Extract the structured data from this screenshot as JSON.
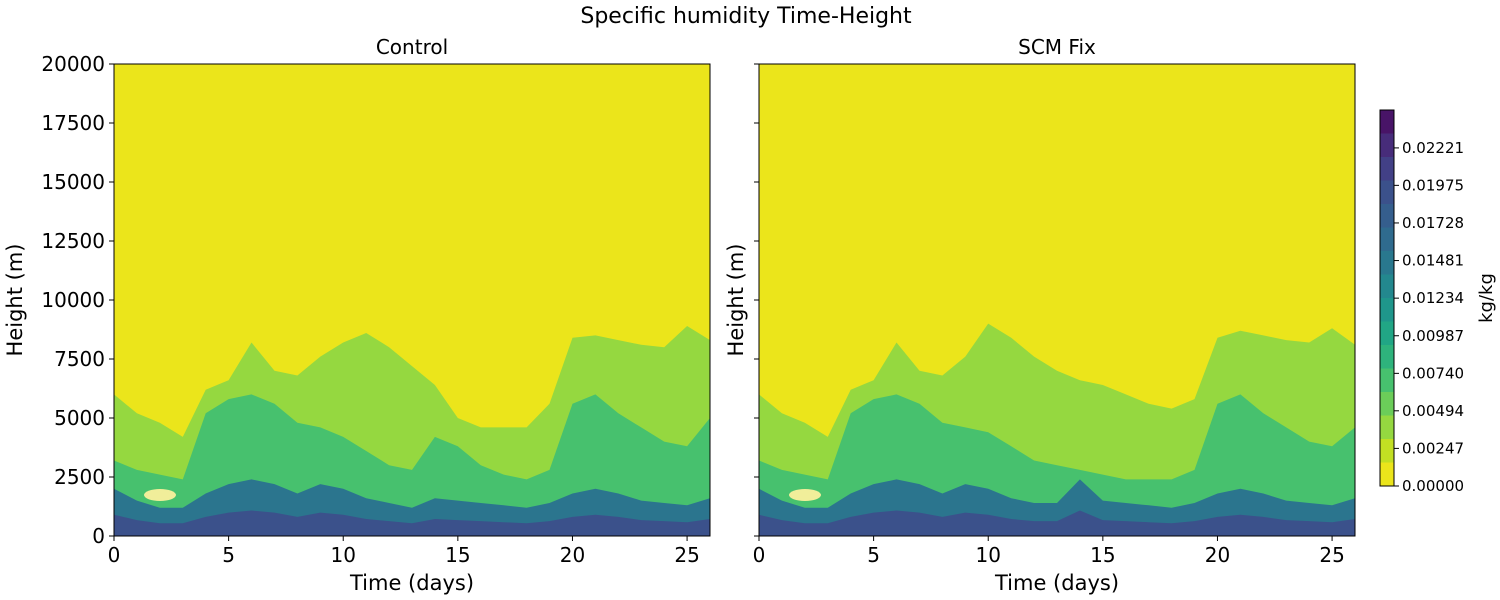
{
  "chart_data": {
    "type": "heatmap",
    "title": "Specific humidity Time-Height",
    "panels": [
      {
        "title": "Control",
        "xlabel": "Time (days)",
        "ylabel": "Height (m)",
        "xlim": [
          0,
          26
        ],
        "ylim": [
          0,
          20000
        ],
        "xticks": [
          "0",
          "5",
          "10",
          "15",
          "20",
          "25"
        ],
        "yticks": [
          "0",
          "2500",
          "5000",
          "7500",
          "10000",
          "12500",
          "15000",
          "17500",
          "20000"
        ],
        "profile": {
          "t": [
            0,
            1,
            2,
            3,
            4,
            5,
            6,
            7,
            8,
            9,
            10,
            11,
            12,
            13,
            14,
            15,
            16,
            17,
            18,
            19,
            20,
            21,
            22,
            23,
            24,
            25,
            26
          ],
          "moist_top": [
            6000,
            5200,
            4800,
            4200,
            6200,
            6600,
            8200,
            7000,
            6800,
            7600,
            8200,
            8600,
            8000,
            7200,
            6400,
            5000,
            4600,
            4600,
            4600,
            5600,
            8400,
            8500,
            8300,
            8100,
            8000,
            8900,
            8300
          ],
          "mid_top": [
            3200,
            2800,
            2600,
            2400,
            5200,
            5800,
            6000,
            5600,
            4800,
            4600,
            4200,
            3600,
            3000,
            2800,
            4200,
            3800,
            3000,
            2600,
            2400,
            2800,
            5600,
            6000,
            5200,
            4600,
            4000,
            3800,
            5000
          ],
          "moist_layer": [
            2000,
            1500,
            1200,
            1200,
            1800,
            2200,
            2400,
            2200,
            1800,
            2200,
            2000,
            1600,
            1400,
            1200,
            1600,
            1500,
            1400,
            1300,
            1200,
            1400,
            1800,
            2000,
            1800,
            1500,
            1400,
            1300,
            1600
          ]
        }
      },
      {
        "title": "SCM Fix",
        "xlabel": "Time (days)",
        "ylabel": "Height (m)",
        "xlim": [
          0,
          26
        ],
        "ylim": [
          0,
          20000
        ],
        "xticks": [
          "0",
          "5",
          "10",
          "15",
          "20",
          "25"
        ],
        "yticks": [
          "0",
          "2500",
          "5000",
          "7500",
          "10000",
          "12500",
          "15000",
          "17500",
          "20000"
        ],
        "profile": {
          "t": [
            0,
            1,
            2,
            3,
            4,
            5,
            6,
            7,
            8,
            9,
            10,
            11,
            12,
            13,
            14,
            15,
            16,
            17,
            18,
            19,
            20,
            21,
            22,
            23,
            24,
            25,
            26
          ],
          "moist_top": [
            6000,
            5200,
            4800,
            4200,
            6200,
            6600,
            8200,
            7000,
            6800,
            7600,
            9000,
            8400,
            7600,
            7000,
            6600,
            6400,
            6000,
            5600,
            5400,
            5800,
            8400,
            8700,
            8500,
            8300,
            8200,
            8800,
            8100
          ],
          "mid_top": [
            3200,
            2800,
            2600,
            2400,
            5200,
            5800,
            6000,
            5600,
            4800,
            4600,
            4400,
            3800,
            3200,
            3000,
            2800,
            2600,
            2400,
            2400,
            2400,
            2800,
            5600,
            6000,
            5200,
            4600,
            4000,
            3800,
            4600
          ],
          "moist_layer": [
            2000,
            1500,
            1200,
            1200,
            1800,
            2200,
            2400,
            2200,
            1800,
            2200,
            2000,
            1600,
            1400,
            1400,
            2400,
            1500,
            1400,
            1300,
            1200,
            1400,
            1800,
            2000,
            1800,
            1500,
            1400,
            1300,
            1600
          ]
        }
      }
    ],
    "colorbar": {
      "label": "kg/kg",
      "ticks": [
        "0.00000",
        "0.00247",
        "0.00494",
        "0.00740",
        "0.00987",
        "0.01234",
        "0.01481",
        "0.01728",
        "0.01975",
        "0.02221"
      ],
      "max": 0.0247,
      "levels": [
        "#ebe51b",
        "#c2df23",
        "#95d840",
        "#6bcd59",
        "#47c16e",
        "#2eb37c",
        "#21a685",
        "#1f968b",
        "#23888e",
        "#29788e",
        "#2f6b8e",
        "#355e8d",
        "#3b518b",
        "#424086",
        "#472c7a",
        "#481467"
      ]
    }
  }
}
